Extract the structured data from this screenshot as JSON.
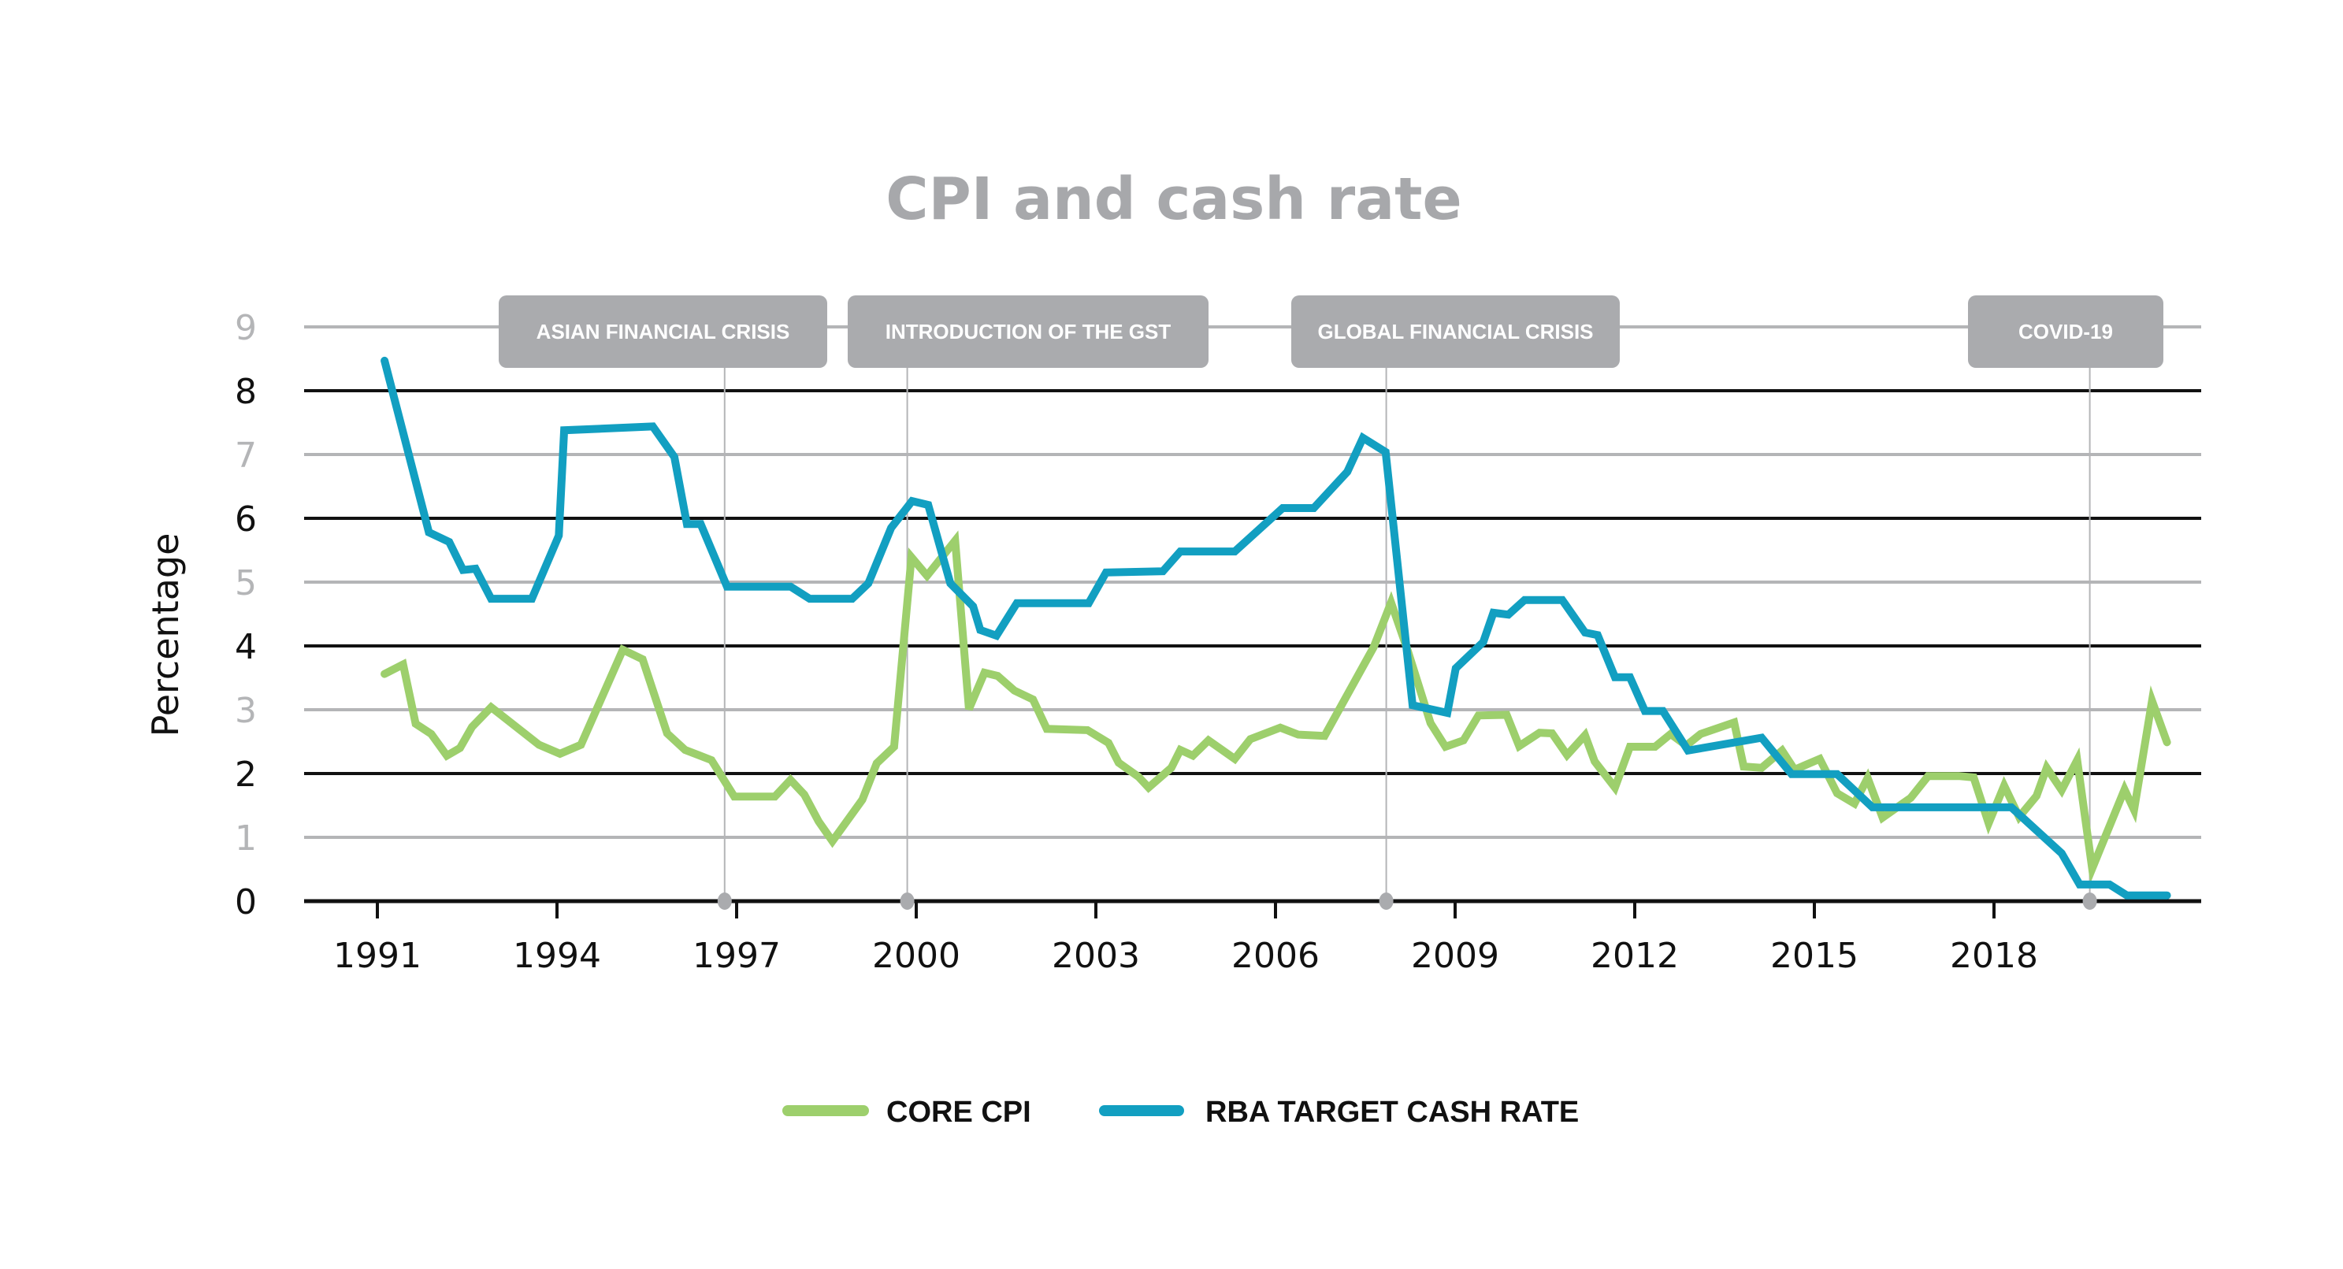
{
  "chart_data": {
    "type": "line",
    "title": "CPI and cash rate",
    "xlabel": "",
    "ylabel": "Percentage",
    "xlim": [
      1990.4,
      2021.6
    ],
    "ylim": [
      0,
      9
    ],
    "yticks": [
      "0",
      "1",
      "2",
      "3",
      "4",
      "5",
      "6",
      "7",
      "8",
      "9"
    ],
    "xticks": [
      "1991",
      "1994",
      "1997",
      "2000",
      "2003",
      "2006",
      "2009",
      "2012",
      "2015",
      "2018"
    ],
    "grid": true,
    "legend_position": "bottom-center",
    "colors": {
      "core_cpi": "#9dcf6c",
      "cash_rate": "#129fc1",
      "annotation": "#aaabae",
      "title": "#a7a8ab"
    },
    "annotations": [
      {
        "label": "ASIAN FINANCIAL CRISIS",
        "x": 1996.8
      },
      {
        "label": "INTRODUCTION OF THE GST",
        "x": 1999.85
      },
      {
        "label": "GLOBAL FINANCIAL CRISIS",
        "x": 2007.85
      },
      {
        "label": "COVID-19",
        "x": 2019.6
      }
    ],
    "series": [
      {
        "name": "CORE CPI",
        "x": [
          1991.12,
          1991.43,
          1991.64,
          1991.9,
          1992.16,
          1992.38,
          1992.58,
          1992.9,
          1993.7,
          1994.05,
          1994.4,
          1995.1,
          1995.43,
          1995.84,
          1996.14,
          1996.58,
          1996.96,
          1997.64,
          1997.9,
          1998.13,
          1998.37,
          1998.6,
          1999.1,
          1999.34,
          1999.63,
          1999.92,
          2000.18,
          2000.65,
          2000.88,
          2001.14,
          2001.36,
          2001.64,
          2001.95,
          2002.18,
          2002.86,
          2003.21,
          2003.38,
          2003.71,
          2003.88,
          2004.26,
          2004.41,
          2004.62,
          2004.88,
          2005.32,
          2005.58,
          2006.08,
          2006.38,
          2006.82,
          2007.64,
          2007.93,
          2008.2,
          2008.59,
          2008.84,
          2009.14,
          2009.39,
          2009.86,
          2010.07,
          2010.41,
          2010.62,
          2010.87,
          2011.17,
          2011.33,
          2011.67,
          2011.92,
          2012.34,
          2012.6,
          2012.86,
          2013.1,
          2013.66,
          2013.82,
          2014.12,
          2014.46,
          2014.67,
          2015.09,
          2015.38,
          2015.67,
          2015.89,
          2016.14,
          2016.61,
          2016.9,
          2017.41,
          2017.66,
          2017.91,
          2018.17,
          2018.42,
          2018.71,
          2018.88,
          2019.13,
          2019.39,
          2019.64,
          2020.18,
          2020.34,
          2020.64,
          2020.89
        ],
        "values": [
          3.56,
          3.71,
          2.78,
          2.62,
          2.28,
          2.4,
          2.73,
          3.04,
          2.45,
          2.31,
          2.45,
          3.94,
          3.79,
          2.63,
          2.37,
          2.21,
          1.64,
          1.64,
          1.9,
          1.67,
          1.25,
          0.94,
          1.59,
          2.16,
          2.42,
          5.39,
          5.1,
          5.65,
          3.01,
          3.58,
          3.53,
          3.3,
          3.16,
          2.7,
          2.68,
          2.48,
          2.17,
          1.95,
          1.78,
          2.09,
          2.37,
          2.28,
          2.52,
          2.23,
          2.54,
          2.72,
          2.61,
          2.59,
          3.98,
          4.68,
          3.95,
          2.79,
          2.42,
          2.52,
          2.91,
          2.92,
          2.43,
          2.64,
          2.63,
          2.29,
          2.6,
          2.19,
          1.78,
          2.42,
          2.42,
          2.62,
          2.44,
          2.62,
          2.8,
          2.11,
          2.09,
          2.36,
          2.06,
          2.23,
          1.69,
          1.53,
          1.93,
          1.31,
          1.62,
          1.96,
          1.96,
          1.94,
          1.22,
          1.81,
          1.32,
          1.65,
          2.09,
          1.74,
          2.21,
          0.51,
          1.75,
          1.43,
          3.14,
          2.49
        ]
      },
      {
        "name": "RBA TARGET CASH RATE",
        "x": [
          1991.12,
          1991.86,
          1992.2,
          1992.43,
          1992.64,
          1992.9,
          1993.58,
          1994.03,
          1994.12,
          1995.6,
          1995.96,
          1996.17,
          1996.4,
          1996.84,
          1997.9,
          1998.22,
          1998.93,
          1999.2,
          1999.58,
          1999.93,
          2000.2,
          2000.57,
          2000.95,
          2001.07,
          2001.34,
          2001.68,
          2002.88,
          2003.17,
          2004.12,
          2004.41,
          2005.32,
          2006.12,
          2006.64,
          2007.2,
          2007.46,
          2007.84,
          2008.29,
          2008.87,
          2009.01,
          2009.47,
          2009.64,
          2009.89,
          2010.16,
          2010.79,
          2011.17,
          2011.38,
          2011.67,
          2011.92,
          2012.17,
          2012.47,
          2012.89,
          2014.12,
          2014.62,
          2015.38,
          2015.97,
          2018.29,
          2019.13,
          2019.43,
          2019.93,
          2020.22,
          2020.89
        ],
        "values": [
          8.47,
          5.78,
          5.63,
          5.19,
          5.21,
          4.74,
          4.74,
          5.73,
          7.38,
          7.44,
          6.96,
          5.91,
          5.91,
          4.93,
          4.93,
          4.74,
          4.74,
          4.98,
          5.85,
          6.27,
          6.21,
          4.98,
          4.62,
          4.25,
          4.16,
          4.67,
          4.67,
          5.15,
          5.17,
          5.48,
          5.48,
          6.16,
          6.16,
          6.73,
          7.26,
          7.04,
          3.07,
          2.95,
          3.65,
          4.06,
          4.52,
          4.49,
          4.72,
          4.72,
          4.21,
          4.17,
          3.51,
          3.51,
          2.98,
          2.98,
          2.36,
          2.56,
          1.99,
          1.99,
          1.47,
          1.47,
          0.75,
          0.26,
          0.26,
          0.09,
          0.09
        ]
      }
    ]
  }
}
